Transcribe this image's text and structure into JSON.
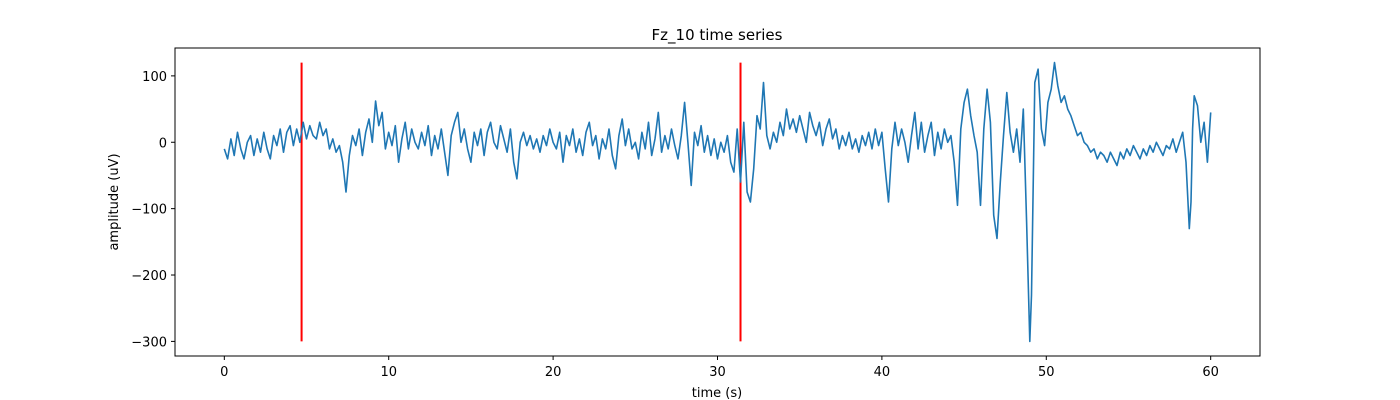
{
  "chart_data": {
    "type": "line",
    "title": "Fz_10 time series",
    "xlabel": "time (s)",
    "ylabel": "amplitude (uV)",
    "xlim": [
      -3,
      63
    ],
    "ylim": [
      -322,
      142
    ],
    "x_ticks": [
      0,
      10,
      20,
      30,
      40,
      50,
      60
    ],
    "x_tick_labels": [
      "0",
      "10",
      "20",
      "30",
      "40",
      "50",
      "60"
    ],
    "y_ticks": [
      100,
      0,
      -100,
      -200,
      -300
    ],
    "y_tick_labels": [
      "100",
      "0",
      "−100",
      "−200",
      "−300"
    ],
    "grid": false,
    "legend": "none",
    "colors": {
      "series": "#1f77b4",
      "markers": "#ff0000",
      "axes": "#000000"
    },
    "series": [
      {
        "points": [
          [
            0.0,
            -10
          ],
          [
            0.2,
            -25
          ],
          [
            0.4,
            5
          ],
          [
            0.6,
            -20
          ],
          [
            0.8,
            15
          ],
          [
            1.0,
            -10
          ],
          [
            1.2,
            -25
          ],
          [
            1.4,
            0
          ],
          [
            1.6,
            10
          ],
          [
            1.8,
            -20
          ],
          [
            2.0,
            5
          ],
          [
            2.2,
            -15
          ],
          [
            2.4,
            15
          ],
          [
            2.6,
            -10
          ],
          [
            2.8,
            -25
          ],
          [
            3.0,
            10
          ],
          [
            3.2,
            -5
          ],
          [
            3.4,
            20
          ],
          [
            3.6,
            -15
          ],
          [
            3.8,
            15
          ],
          [
            4.0,
            25
          ],
          [
            4.2,
            -5
          ],
          [
            4.4,
            20
          ],
          [
            4.6,
            0
          ],
          [
            4.8,
            30
          ],
          [
            5.0,
            5
          ],
          [
            5.2,
            25
          ],
          [
            5.4,
            10
          ],
          [
            5.6,
            5
          ],
          [
            5.8,
            30
          ],
          [
            6.0,
            10
          ],
          [
            6.2,
            20
          ],
          [
            6.4,
            -10
          ],
          [
            6.6,
            5
          ],
          [
            6.8,
            -15
          ],
          [
            7.0,
            -5
          ],
          [
            7.2,
            -30
          ],
          [
            7.4,
            -75
          ],
          [
            7.6,
            -20
          ],
          [
            7.8,
            10
          ],
          [
            8.0,
            -5
          ],
          [
            8.2,
            20
          ],
          [
            8.4,
            -20
          ],
          [
            8.6,
            15
          ],
          [
            8.8,
            35
          ],
          [
            9.0,
            0
          ],
          [
            9.2,
            62
          ],
          [
            9.4,
            25
          ],
          [
            9.6,
            45
          ],
          [
            9.8,
            -10
          ],
          [
            10.0,
            15
          ],
          [
            10.2,
            -5
          ],
          [
            10.4,
            25
          ],
          [
            10.6,
            -30
          ],
          [
            10.8,
            5
          ],
          [
            11.0,
            30
          ],
          [
            11.2,
            -10
          ],
          [
            11.4,
            20
          ],
          [
            11.6,
            0
          ],
          [
            11.8,
            -10
          ],
          [
            12.0,
            15
          ],
          [
            12.2,
            -5
          ],
          [
            12.4,
            25
          ],
          [
            12.6,
            -20
          ],
          [
            12.8,
            10
          ],
          [
            13.0,
            -10
          ],
          [
            13.2,
            20
          ],
          [
            13.4,
            -15
          ],
          [
            13.6,
            -50
          ],
          [
            13.8,
            10
          ],
          [
            14.0,
            30
          ],
          [
            14.2,
            45
          ],
          [
            14.4,
            0
          ],
          [
            14.6,
            20
          ],
          [
            14.8,
            -10
          ],
          [
            15.0,
            -30
          ],
          [
            15.2,
            15
          ],
          [
            15.4,
            -5
          ],
          [
            15.6,
            20
          ],
          [
            15.8,
            -20
          ],
          [
            16.0,
            15
          ],
          [
            16.2,
            30
          ],
          [
            16.4,
            0
          ],
          [
            16.6,
            -10
          ],
          [
            16.8,
            25
          ],
          [
            17.0,
            5
          ],
          [
            17.2,
            -15
          ],
          [
            17.4,
            20
          ],
          [
            17.6,
            -30
          ],
          [
            17.8,
            -55
          ],
          [
            18.0,
            0
          ],
          [
            18.2,
            15
          ],
          [
            18.4,
            -5
          ],
          [
            18.6,
            10
          ],
          [
            18.8,
            -10
          ],
          [
            19.0,
            5
          ],
          [
            19.2,
            -15
          ],
          [
            19.4,
            10
          ],
          [
            19.6,
            -5
          ],
          [
            19.8,
            20
          ],
          [
            20.0,
            0
          ],
          [
            20.2,
            -10
          ],
          [
            20.4,
            15
          ],
          [
            20.6,
            -30
          ],
          [
            20.8,
            10
          ],
          [
            21.0,
            -5
          ],
          [
            21.2,
            20
          ],
          [
            21.4,
            -15
          ],
          [
            21.6,
            5
          ],
          [
            21.8,
            -20
          ],
          [
            22.0,
            15
          ],
          [
            22.2,
            30
          ],
          [
            22.4,
            -5
          ],
          [
            22.6,
            10
          ],
          [
            22.8,
            -25
          ],
          [
            23.0,
            5
          ],
          [
            23.2,
            -10
          ],
          [
            23.4,
            20
          ],
          [
            23.6,
            -20
          ],
          [
            23.8,
            -40
          ],
          [
            24.0,
            10
          ],
          [
            24.2,
            35
          ],
          [
            24.4,
            -5
          ],
          [
            24.6,
            20
          ],
          [
            24.8,
            -10
          ],
          [
            25.0,
            0
          ],
          [
            25.2,
            -25
          ],
          [
            25.4,
            15
          ],
          [
            25.6,
            -10
          ],
          [
            25.8,
            30
          ],
          [
            26.0,
            -20
          ],
          [
            26.2,
            5
          ],
          [
            26.4,
            45
          ],
          [
            26.6,
            -15
          ],
          [
            26.8,
            10
          ],
          [
            27.0,
            -10
          ],
          [
            27.2,
            20
          ],
          [
            27.4,
            -5
          ],
          [
            27.6,
            -25
          ],
          [
            27.8,
            10
          ],
          [
            28.0,
            60
          ],
          [
            28.2,
            0
          ],
          [
            28.4,
            -65
          ],
          [
            28.6,
            15
          ],
          [
            28.8,
            -5
          ],
          [
            29.0,
            25
          ],
          [
            29.2,
            -15
          ],
          [
            29.4,
            10
          ],
          [
            29.6,
            -20
          ],
          [
            29.8,
            5
          ],
          [
            30.0,
            -25
          ],
          [
            30.2,
            0
          ],
          [
            30.4,
            -15
          ],
          [
            30.6,
            10
          ],
          [
            30.8,
            -30
          ],
          [
            31.0,
            -45
          ],
          [
            31.2,
            20
          ],
          [
            31.4,
            -60
          ],
          [
            31.6,
            30
          ],
          [
            31.8,
            -75
          ],
          [
            32.0,
            -90
          ],
          [
            32.2,
            -40
          ],
          [
            32.4,
            40
          ],
          [
            32.6,
            20
          ],
          [
            32.8,
            90
          ],
          [
            33.0,
            10
          ],
          [
            33.2,
            -10
          ],
          [
            33.4,
            15
          ],
          [
            33.6,
            0
          ],
          [
            33.8,
            30
          ],
          [
            34.0,
            10
          ],
          [
            34.2,
            50
          ],
          [
            34.4,
            20
          ],
          [
            34.6,
            35
          ],
          [
            34.8,
            15
          ],
          [
            35.0,
            40
          ],
          [
            35.2,
            20
          ],
          [
            35.4,
            0
          ],
          [
            35.6,
            45
          ],
          [
            35.8,
            25
          ],
          [
            36.0,
            10
          ],
          [
            36.2,
            30
          ],
          [
            36.4,
            -5
          ],
          [
            36.6,
            20
          ],
          [
            36.8,
            35
          ],
          [
            37.0,
            5
          ],
          [
            37.2,
            20
          ],
          [
            37.4,
            -10
          ],
          [
            37.6,
            10
          ],
          [
            37.8,
            -5
          ],
          [
            38.0,
            15
          ],
          [
            38.2,
            -10
          ],
          [
            38.4,
            5
          ],
          [
            38.6,
            -15
          ],
          [
            38.8,
            10
          ],
          [
            39.0,
            -5
          ],
          [
            39.2,
            15
          ],
          [
            39.4,
            -10
          ],
          [
            39.6,
            20
          ],
          [
            39.8,
            -5
          ],
          [
            40.0,
            15
          ],
          [
            40.2,
            -40
          ],
          [
            40.4,
            -90
          ],
          [
            40.6,
            -10
          ],
          [
            40.8,
            30
          ],
          [
            41.0,
            -5
          ],
          [
            41.2,
            20
          ],
          [
            41.4,
            0
          ],
          [
            41.6,
            -30
          ],
          [
            41.8,
            10
          ],
          [
            42.0,
            45
          ],
          [
            42.2,
            -10
          ],
          [
            42.4,
            30
          ],
          [
            42.6,
            -15
          ],
          [
            42.8,
            10
          ],
          [
            43.0,
            30
          ],
          [
            43.2,
            -20
          ],
          [
            43.4,
            15
          ],
          [
            43.6,
            -10
          ],
          [
            43.8,
            20
          ],
          [
            44.0,
            0
          ],
          [
            44.2,
            10
          ],
          [
            44.4,
            -30
          ],
          [
            44.6,
            -95
          ],
          [
            44.8,
            20
          ],
          [
            45.0,
            60
          ],
          [
            45.2,
            80
          ],
          [
            45.4,
            40
          ],
          [
            45.6,
            10
          ],
          [
            45.8,
            -15
          ],
          [
            46.0,
            -95
          ],
          [
            46.2,
            20
          ],
          [
            46.4,
            80
          ],
          [
            46.6,
            30
          ],
          [
            46.8,
            -110
          ],
          [
            47.0,
            -145
          ],
          [
            47.2,
            -60
          ],
          [
            47.4,
            10
          ],
          [
            47.6,
            75
          ],
          [
            47.8,
            15
          ],
          [
            48.0,
            -15
          ],
          [
            48.2,
            20
          ],
          [
            48.4,
            -30
          ],
          [
            48.6,
            50
          ],
          [
            48.8,
            -120
          ],
          [
            49.0,
            -300
          ],
          [
            49.1,
            -230
          ],
          [
            49.3,
            90
          ],
          [
            49.5,
            110
          ],
          [
            49.7,
            20
          ],
          [
            49.9,
            -5
          ],
          [
            50.1,
            60
          ],
          [
            50.3,
            80
          ],
          [
            50.5,
            120
          ],
          [
            50.7,
            85
          ],
          [
            50.9,
            60
          ],
          [
            51.1,
            70
          ],
          [
            51.3,
            50
          ],
          [
            51.5,
            40
          ],
          [
            51.7,
            25
          ],
          [
            51.9,
            10
          ],
          [
            52.1,
            15
          ],
          [
            52.3,
            0
          ],
          [
            52.5,
            -5
          ],
          [
            52.7,
            -15
          ],
          [
            52.9,
            -10
          ],
          [
            53.1,
            -25
          ],
          [
            53.3,
            -15
          ],
          [
            53.5,
            -20
          ],
          [
            53.7,
            -30
          ],
          [
            53.9,
            -15
          ],
          [
            54.1,
            -25
          ],
          [
            54.3,
            -35
          ],
          [
            54.5,
            -15
          ],
          [
            54.7,
            -25
          ],
          [
            54.9,
            -10
          ],
          [
            55.1,
            -20
          ],
          [
            55.3,
            -5
          ],
          [
            55.5,
            -15
          ],
          [
            55.7,
            -25
          ],
          [
            55.9,
            -10
          ],
          [
            56.1,
            -20
          ],
          [
            56.3,
            -5
          ],
          [
            56.5,
            -15
          ],
          [
            56.7,
            0
          ],
          [
            56.9,
            -10
          ],
          [
            57.1,
            -20
          ],
          [
            57.3,
            -5
          ],
          [
            57.5,
            -10
          ],
          [
            57.7,
            5
          ],
          [
            57.9,
            -15
          ],
          [
            58.1,
            0
          ],
          [
            58.3,
            15
          ],
          [
            58.5,
            -30
          ],
          [
            58.7,
            -130
          ],
          [
            58.8,
            -90
          ],
          [
            58.9,
            20
          ],
          [
            59.0,
            70
          ],
          [
            59.2,
            55
          ],
          [
            59.4,
            0
          ],
          [
            59.6,
            30
          ],
          [
            59.8,
            -30
          ],
          [
            60.0,
            45
          ]
        ]
      }
    ],
    "vertical_markers": [
      {
        "x": 4.7,
        "y_from": -300,
        "y_to": 120
      },
      {
        "x": 31.4,
        "y_from": -300,
        "y_to": 120
      }
    ]
  }
}
